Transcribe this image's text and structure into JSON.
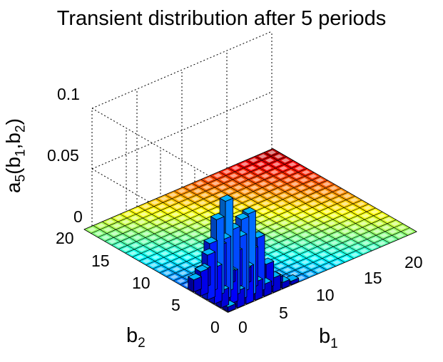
{
  "title": "Transient distribution after 5 periods",
  "chart_data": {
    "type": "bar3d",
    "title": "Transient distribution after 5 periods",
    "zlabel": {
      "main": "a",
      "sub": "5",
      "args": [
        "b",
        "1",
        "b",
        "2"
      ]
    },
    "xlabel": {
      "main": "b",
      "sub": "1"
    },
    "ylabel": {
      "main": "b",
      "sub": "2"
    },
    "xlim": [
      0,
      20
    ],
    "ylim": [
      0,
      20
    ],
    "zlim": [
      0,
      0.1
    ],
    "xticks": [
      "0",
      "5",
      "10",
      "15",
      "20"
    ],
    "yticks": [
      "0",
      "5",
      "10",
      "15",
      "20"
    ],
    "zticks": [
      "0",
      "0.05",
      "0.1"
    ],
    "grid": true,
    "colormap": "jet",
    "bars": [
      {
        "b1": 0,
        "b2": 0,
        "value": 0.004
      },
      {
        "b1": 1,
        "b2": 0,
        "value": 0.014
      },
      {
        "b1": 0,
        "b2": 1,
        "value": 0.014
      },
      {
        "b1": 2,
        "b2": 0,
        "value": 0.03
      },
      {
        "b1": 0,
        "b2": 2,
        "value": 0.03
      },
      {
        "b1": 1,
        "b2": 1,
        "value": 0.026
      },
      {
        "b1": 3,
        "b2": 0,
        "value": 0.015
      },
      {
        "b1": 0,
        "b2": 3,
        "value": 0.037
      },
      {
        "b1": 2,
        "b2": 1,
        "value": 0.052
      },
      {
        "b1": 1,
        "b2": 2,
        "value": 0.05
      },
      {
        "b1": 4,
        "b2": 0,
        "value": 0.01
      },
      {
        "b1": 0,
        "b2": 4,
        "value": 0.02
      },
      {
        "b1": 3,
        "b2": 1,
        "value": 0.068
      },
      {
        "b1": 1,
        "b2": 3,
        "value": 0.063
      },
      {
        "b1": 2,
        "b2": 2,
        "value": 0.055
      },
      {
        "b1": 5,
        "b2": 0,
        "value": 0.012
      },
      {
        "b1": 0,
        "b2": 5,
        "value": 0.01
      },
      {
        "b1": 4,
        "b2": 1,
        "value": 0.045
      },
      {
        "b1": 1,
        "b2": 4,
        "value": 0.04
      },
      {
        "b1": 3,
        "b2": 2,
        "value": 0.06
      },
      {
        "b1": 2,
        "b2": 3,
        "value": 0.075
      },
      {
        "b1": 6,
        "b2": 0,
        "value": 0.005
      },
      {
        "b1": 5,
        "b2": 1,
        "value": 0.02
      },
      {
        "b1": 1,
        "b2": 5,
        "value": 0.015
      },
      {
        "b1": 4,
        "b2": 2,
        "value": 0.032
      },
      {
        "b1": 2,
        "b2": 4,
        "value": 0.035
      },
      {
        "b1": 3,
        "b2": 3,
        "value": 0.03
      },
      {
        "b1": 7,
        "b2": 0,
        "value": 0.003
      },
      {
        "b1": 6,
        "b2": 1,
        "value": 0.005
      },
      {
        "b1": 4,
        "b2": 3,
        "value": 0.012
      },
      {
        "b1": 3,
        "b2": 4,
        "value": 0.01
      }
    ]
  }
}
